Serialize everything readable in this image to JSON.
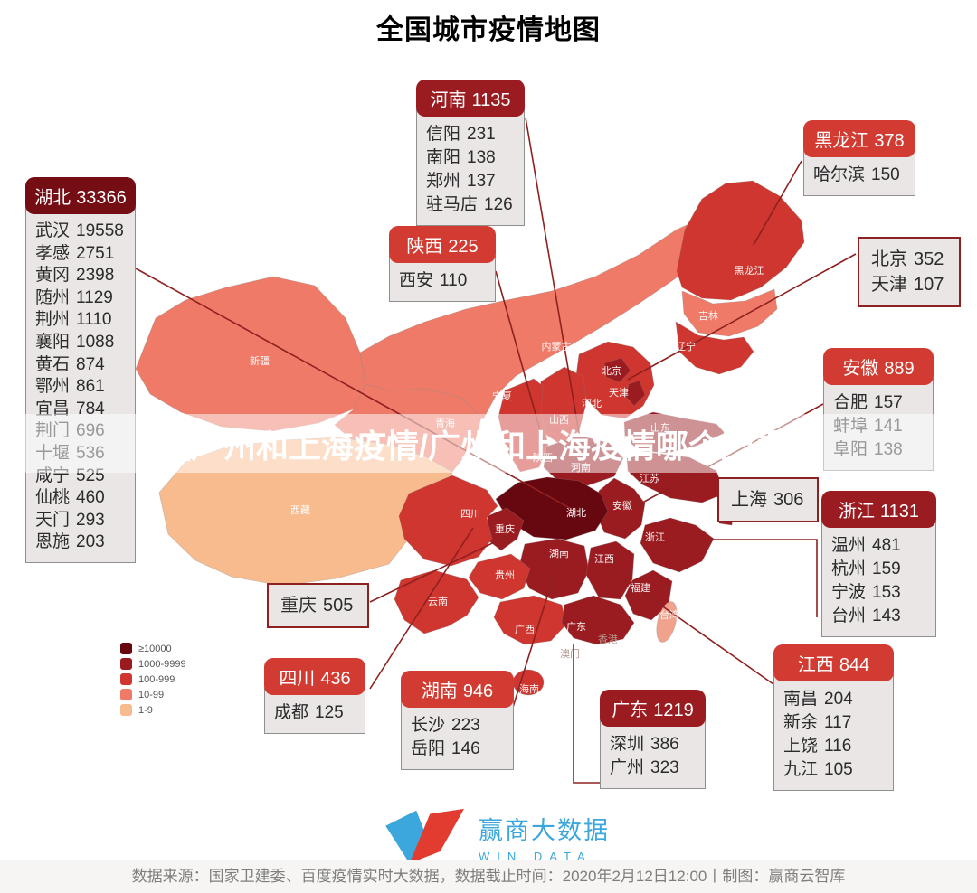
{
  "title": "全国城市疫情地图",
  "watermark_text": "【广州和上海疫情/广州和上海疫情哪个严重】",
  "colors": {
    "level_darkest": "#67070f",
    "level_dark": "#9a1b20",
    "level_mid": "#ce362f",
    "level_low": "#ee7a67",
    "level_min": "#f8bb8e",
    "level_taiwan": "#f0a28d",
    "header_darkest": "#740d14",
    "header_dark": "#9a1b20",
    "header_mid": "#d23b31",
    "box_border": "#8f2020",
    "logo_blue": "#3ba7dc",
    "logo_red": "#e23b30"
  },
  "legend": [
    {
      "label": "≥10000",
      "level": "darkest"
    },
    {
      "label": "1000-9999",
      "level": "dark"
    },
    {
      "label": "100-999",
      "level": "mid"
    },
    {
      "label": "10-99",
      "level": "low"
    },
    {
      "label": "1-9",
      "level": "min"
    }
  ],
  "callouts": [
    {
      "id": "hubei",
      "province": "湖北",
      "total": "33366",
      "level": "darkest",
      "rows": [
        {
          "name": "武汉",
          "value": "19558"
        },
        {
          "name": "孝感",
          "value": "2751"
        },
        {
          "name": "黄冈",
          "value": "2398"
        },
        {
          "name": "随州",
          "value": "1129"
        },
        {
          "name": "荆州",
          "value": "1110"
        },
        {
          "name": "襄阳",
          "value": "1088"
        },
        {
          "name": "黄石",
          "value": "874"
        },
        {
          "name": "鄂州",
          "value": "861"
        },
        {
          "name": "宜昌",
          "value": "784"
        },
        {
          "name": "荆门",
          "value": "696"
        },
        {
          "name": "十堰",
          "value": "536"
        },
        {
          "name": "咸宁",
          "value": "525"
        },
        {
          "name": "仙桃",
          "value": "460"
        },
        {
          "name": "天门",
          "value": "293"
        },
        {
          "name": "恩施",
          "value": "203"
        }
      ]
    },
    {
      "id": "henan",
      "province": "河南",
      "total": "1135",
      "level": "dark",
      "rows": [
        {
          "name": "信阳",
          "value": "231"
        },
        {
          "name": "南阳",
          "value": "138"
        },
        {
          "name": "郑州",
          "value": "137"
        },
        {
          "name": "驻马店",
          "value": "126"
        }
      ]
    },
    {
      "id": "shaanxi",
      "province": "陕西",
      "total": "225",
      "level": "mid",
      "rows": [
        {
          "name": "西安",
          "value": "110"
        }
      ]
    },
    {
      "id": "heilongjiang",
      "province": "黑龙江",
      "total": "378",
      "level": "mid",
      "rows": [
        {
          "name": "哈尔滨",
          "value": "150"
        }
      ]
    },
    {
      "id": "beijing-tianjin",
      "province": null,
      "total": null,
      "level": null,
      "rows": [
        {
          "name": "北京",
          "value": "352"
        },
        {
          "name": "天津",
          "value": "107"
        }
      ]
    },
    {
      "id": "anhui",
      "province": "安徽",
      "total": "889",
      "level": "mid",
      "rows": [
        {
          "name": "合肥",
          "value": "157"
        },
        {
          "name": "蚌埠",
          "value": "141"
        },
        {
          "name": "阜阳",
          "value": "138"
        }
      ]
    },
    {
      "id": "shanghai",
      "province": null,
      "total": null,
      "level": null,
      "rows": [
        {
          "name": "上海",
          "value": "306"
        }
      ]
    },
    {
      "id": "zhejiang",
      "province": "浙江",
      "total": "1131",
      "level": "dark",
      "rows": [
        {
          "name": "温州",
          "value": "481"
        },
        {
          "name": "杭州",
          "value": "159"
        },
        {
          "name": "宁波",
          "value": "153"
        },
        {
          "name": "台州",
          "value": "143"
        }
      ]
    },
    {
      "id": "jiangxi",
      "province": "江西",
      "total": "844",
      "level": "mid",
      "rows": [
        {
          "name": "南昌",
          "value": "204"
        },
        {
          "name": "新余",
          "value": "117"
        },
        {
          "name": "上饶",
          "value": "116"
        },
        {
          "name": "九江",
          "value": "105"
        }
      ]
    },
    {
      "id": "guangdong",
      "province": "广东",
      "total": "1219",
      "level": "dark",
      "rows": [
        {
          "name": "深圳",
          "value": "386"
        },
        {
          "name": "广州",
          "value": "323"
        }
      ]
    },
    {
      "id": "hunan",
      "province": "湖南",
      "total": "946",
      "level": "mid",
      "rows": [
        {
          "name": "长沙",
          "value": "223"
        },
        {
          "name": "岳阳",
          "value": "146"
        }
      ]
    },
    {
      "id": "sichuan",
      "province": "四川",
      "total": "436",
      "level": "mid",
      "rows": [
        {
          "name": "成都",
          "value": "125"
        }
      ]
    },
    {
      "id": "chongqing",
      "province": null,
      "total": null,
      "level": null,
      "rows": [
        {
          "name": "重庆",
          "value": "505"
        }
      ]
    }
  ],
  "map_labels": [
    "新疆",
    "西藏",
    "青海",
    "宁夏",
    "内蒙古",
    "黑龙江",
    "吉林",
    "辽宁",
    "北京",
    "天津",
    "河北",
    "山西",
    "山东",
    "陕西",
    "河南",
    "江苏",
    "安徽",
    "浙江",
    "湖北",
    "重庆",
    "四川",
    "湖南",
    "江西",
    "贵州",
    "云南",
    "广西",
    "广东",
    "福建",
    "香港",
    "澳门",
    "海南",
    "台湾"
  ],
  "footer": {
    "logo_cn": "赢商大数据",
    "logo_en": "WIN DATA",
    "source_line": "数据来源：国家卫建委、百度疫情实时大数据，数据截止时间：2020年2月12日12:00丨制图：赢商云智库"
  }
}
